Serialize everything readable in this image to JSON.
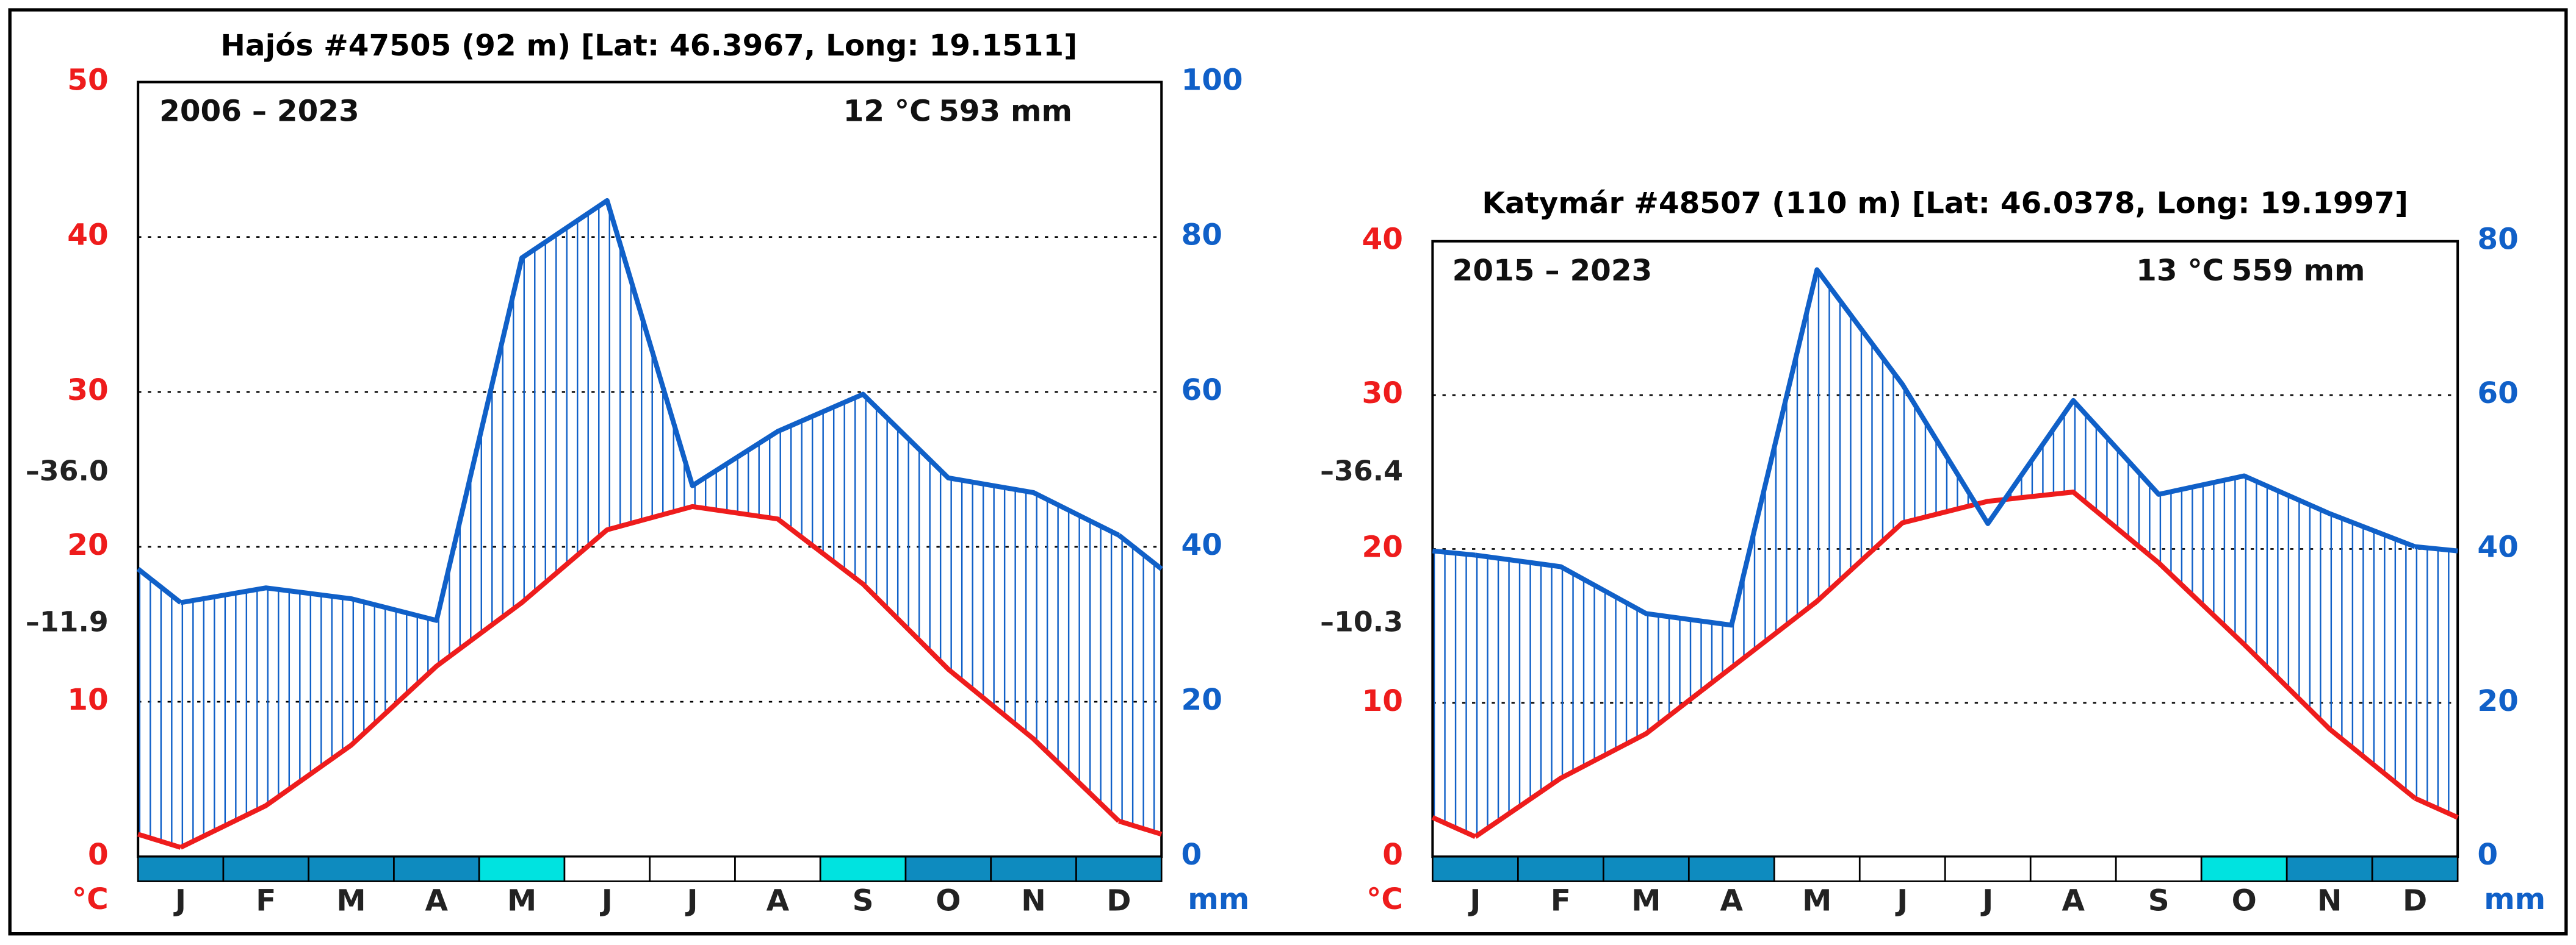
{
  "chart_data": [
    {
      "type": "climate",
      "title": "Hajós #47505 (92 m) [Lat: 46.3967, Long: 19.1511]",
      "period": "2006 – 2023",
      "temp_label": "12 °C",
      "precip_label": "593 mm",
      "y_unit": "°C",
      "y2_unit": "mm",
      "annotations": [
        "–36.0",
        "–11.9"
      ],
      "categories": [
        "J",
        "F",
        "M",
        "A",
        "M",
        "J",
        "J",
        "A",
        "S",
        "O",
        "N",
        "D"
      ],
      "frost_colors": [
        "#0e8bbf",
        "#0e8bbf",
        "#0e8bbf",
        "#0e8bbf",
        "#00e3e0",
        "#ffffff",
        "#ffffff",
        "#ffffff",
        "#00e3e0",
        "#0e8bbf",
        "#0e8bbf",
        "#0e8bbf"
      ],
      "series": [
        {
          "color": "#ee1c1c",
          "values": [
            0.6,
            3.3,
            7.2,
            12.3,
            16.4,
            21.1,
            22.6,
            21.8,
            17.6,
            12.1,
            7.6,
            2.3
          ]
        },
        {
          "color": "#1060c8",
          "axis": "y2",
          "values": [
            32.8,
            34.7,
            33.3,
            30.5,
            77.3,
            84.7,
            47.9,
            54.9,
            59.7,
            48.9,
            47.0,
            41.5
          ]
        }
      ],
      "ylim": [
        0,
        50
      ],
      "yticks": [
        0,
        10,
        20,
        30,
        40,
        50
      ],
      "y2lim": [
        0,
        100
      ],
      "y2ticks": [
        0,
        20,
        40,
        60,
        80,
        100
      ],
      "grid": true
    },
    {
      "type": "climate",
      "title": "Katymár #48507 (110 m) [Lat: 46.0378, Long: 19.1997]",
      "period": "2015 – 2023",
      "temp_label": "13 °C",
      "precip_label": "559 mm",
      "y_unit": "°C",
      "y2_unit": "mm",
      "annotations": [
        "–36.4",
        "–10.3"
      ],
      "categories": [
        "J",
        "F",
        "M",
        "A",
        "M",
        "J",
        "J",
        "A",
        "S",
        "O",
        "N",
        "D"
      ],
      "frost_colors": [
        "#0e8bbf",
        "#0e8bbf",
        "#0e8bbf",
        "#0e8bbf",
        "#ffffff",
        "#ffffff",
        "#ffffff",
        "#ffffff",
        "#ffffff",
        "#00e3e0",
        "#0e8bbf",
        "#0e8bbf"
      ],
      "series": [
        {
          "color": "#ee1c1c",
          "values": [
            1.3,
            5.1,
            8.0,
            12.3,
            16.6,
            21.7,
            23.1,
            23.7,
            19.1,
            13.8,
            8.3,
            3.8
          ]
        },
        {
          "color": "#1060c8",
          "axis": "y2",
          "values": [
            39.2,
            37.7,
            31.6,
            30.1,
            76.3,
            61.4,
            43.3,
            59.3,
            47.1,
            49.5,
            44.6,
            40.3
          ]
        }
      ],
      "ylim": [
        0,
        40
      ],
      "yticks": [
        0,
        10,
        20,
        30,
        40
      ],
      "y2lim": [
        0,
        80
      ],
      "y2ticks": [
        0,
        20,
        40,
        60,
        80
      ],
      "grid": true
    }
  ]
}
